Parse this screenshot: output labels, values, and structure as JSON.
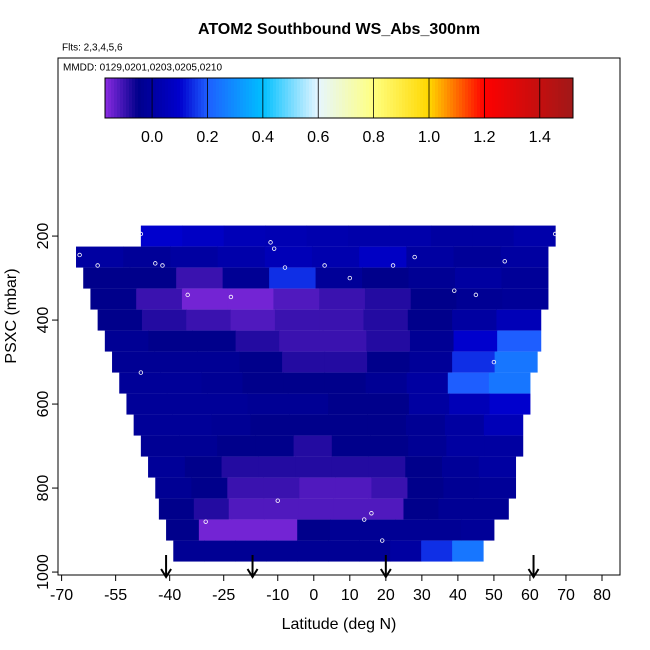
{
  "chart_data": {
    "type": "heatmap",
    "title": "ATOM2 Southbound WS_Abs_300nm",
    "subtitle": "Flts: 2,3,4,5,6",
    "annotation": "MMDD: 0129,0201,0203,0205,0210",
    "x_label": "Latitude (deg N)",
    "y_label": "PSXC (mbar)",
    "xlim": [
      -71,
      85
    ],
    "ylim": [
      1007,
      -224
    ],
    "xticks": [
      -70,
      -55,
      -40,
      -25,
      -10,
      0,
      10,
      20,
      30,
      40,
      50,
      60,
      70,
      80
    ],
    "yticks": [
      200,
      400,
      600,
      800,
      1000
    ],
    "clim": [
      -0.17,
      1.52
    ],
    "cticks": [
      {
        "value": 0,
        "label": "0.0"
      },
      {
        "value": 0.2,
        "label": "0.2"
      },
      {
        "value": 0.4,
        "label": "0.4"
      },
      {
        "value": 0.6,
        "label": "0.6"
      },
      {
        "value": 0.8,
        "label": "0.8"
      },
      {
        "value": 1,
        "label": "1.0"
      },
      {
        "value": 1.2,
        "label": "1.2"
      },
      {
        "value": 1.4,
        "label": "1.4"
      }
    ],
    "colorscale": [
      [
        -0.17,
        "#8a2be2"
      ],
      [
        -0.05,
        "#00008b"
      ],
      [
        0.1,
        "#0000cd"
      ],
      [
        0.2,
        "#1e5eff"
      ],
      [
        0.4,
        "#00bfff"
      ],
      [
        0.6,
        "#e6f6ff"
      ],
      [
        0.8,
        "#ffff80"
      ],
      [
        1.0,
        "#ffd700"
      ],
      [
        1.2,
        "#ff0000"
      ],
      [
        1.52,
        "#a01818"
      ]
    ],
    "rows": [
      {
        "p": [
          175,
          225
        ],
        "lat": [
          -48,
          67
        ],
        "values": [
          0.1,
          0.08,
          0.05,
          0.04,
          0.03,
          0.02,
          0.02,
          0.0,
          0.0,
          0.02
        ]
      },
      {
        "p": [
          225,
          275
        ],
        "lat": [
          -66,
          65
        ],
        "values": [
          0.0,
          -0.02,
          0.0,
          0.02,
          0.05,
          0.03,
          0.08,
          0.0,
          -0.02,
          0.0
        ]
      },
      {
        "p": [
          275,
          325
        ],
        "lat": [
          -64,
          65
        ],
        "values": [
          -0.05,
          -0.05,
          -0.1,
          -0.03,
          0.15,
          -0.02,
          -0.05,
          -0.03,
          0.0,
          -0.02
        ]
      },
      {
        "p": [
          325,
          375
        ],
        "lat": [
          -62,
          65
        ],
        "values": [
          -0.05,
          -0.1,
          -0.15,
          -0.15,
          -0.12,
          -0.1,
          -0.08,
          -0.05,
          -0.03,
          -0.02
        ]
      },
      {
        "p": [
          375,
          425
        ],
        "lat": [
          -60,
          63
        ],
        "values": [
          -0.05,
          -0.08,
          -0.1,
          -0.12,
          -0.1,
          -0.1,
          -0.08,
          -0.05,
          0.0,
          0.05
        ]
      },
      {
        "p": [
          425,
          475
        ],
        "lat": [
          -58,
          63
        ],
        "values": [
          -0.03,
          -0.05,
          -0.05,
          -0.08,
          -0.1,
          -0.1,
          -0.08,
          -0.03,
          0.1,
          0.2
        ]
      },
      {
        "p": [
          475,
          525
        ],
        "lat": [
          -56,
          62
        ],
        "values": [
          -0.03,
          -0.03,
          -0.03,
          -0.05,
          -0.08,
          -0.08,
          -0.05,
          -0.02,
          0.15,
          0.25
        ]
      },
      {
        "p": [
          525,
          575
        ],
        "lat": [
          -54,
          60
        ],
        "values": [
          -0.02,
          -0.02,
          -0.03,
          -0.05,
          -0.05,
          -0.05,
          -0.03,
          0.0,
          0.2,
          0.25
        ]
      },
      {
        "p": [
          575,
          625
        ],
        "lat": [
          -52,
          60
        ],
        "values": [
          -0.02,
          -0.02,
          -0.02,
          -0.03,
          -0.03,
          -0.05,
          -0.05,
          0.0,
          0.05,
          0.1
        ]
      },
      {
        "p": [
          625,
          675
        ],
        "lat": [
          -50,
          58
        ],
        "values": [
          -0.02,
          -0.02,
          -0.03,
          -0.05,
          -0.05,
          -0.05,
          -0.05,
          -0.03,
          0.0,
          0.05
        ]
      },
      {
        "p": [
          675,
          725
        ],
        "lat": [
          -48,
          58
        ],
        "values": [
          -0.03,
          -0.03,
          -0.05,
          -0.05,
          -0.08,
          -0.05,
          -0.05,
          -0.03,
          0.0,
          0.0
        ]
      },
      {
        "p": [
          725,
          775
        ],
        "lat": [
          -46,
          56
        ],
        "values": [
          -0.02,
          -0.05,
          -0.08,
          -0.08,
          -0.08,
          -0.08,
          -0.08,
          -0.05,
          -0.02,
          0.0
        ]
      },
      {
        "p": [
          775,
          825
        ],
        "lat": [
          -44,
          56
        ],
        "values": [
          -0.03,
          -0.05,
          -0.1,
          -0.1,
          -0.12,
          -0.12,
          -0.1,
          -0.05,
          -0.03,
          -0.02
        ]
      },
      {
        "p": [
          825,
          875
        ],
        "lat": [
          -43,
          54
        ],
        "values": [
          -0.05,
          -0.08,
          -0.12,
          -0.12,
          -0.12,
          -0.12,
          -0.12,
          -0.05,
          -0.03,
          -0.03
        ]
      },
      {
        "p": [
          875,
          925
        ],
        "lat": [
          -41,
          50
        ],
        "values": [
          -0.05,
          -0.15,
          -0.15,
          -0.15,
          -0.05,
          -0.03,
          -0.03,
          -0.03,
          -0.03,
          -0.02
        ]
      },
      {
        "p": [
          925,
          975
        ],
        "lat": [
          -39,
          47
        ],
        "values": [
          -0.03,
          -0.03,
          -0.03,
          -0.03,
          -0.03,
          -0.03,
          -0.03,
          0.0,
          0.15,
          0.25
        ]
      }
    ],
    "points": {
      "x": [
        -48,
        -65,
        -60,
        -44,
        -42,
        -35,
        -12,
        -11,
        -8,
        3,
        10,
        22,
        28,
        39,
        53,
        67,
        -48,
        -23,
        -30,
        -10,
        14,
        16,
        19,
        50,
        45
      ],
      "y": [
        195,
        245,
        270,
        265,
        270,
        340,
        215,
        230,
        275,
        270,
        300,
        270,
        250,
        330,
        260,
        195,
        525,
        345,
        880,
        830,
        875,
        860,
        925,
        500,
        340
      ]
    },
    "arrows": [
      -41,
      -17,
      20,
      61
    ]
  }
}
